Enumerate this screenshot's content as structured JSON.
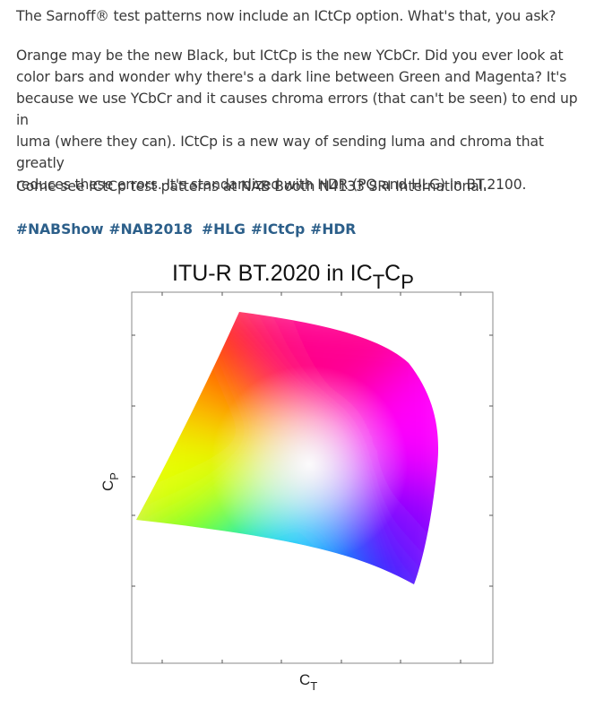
{
  "post": {
    "intro": "The Sarnoff® test patterns now include an ICtCp option. What's that, you ask?",
    "main_lines": [
      "Orange may be the new Black, but ICtCp is the new YCbCr.  Did you ever look at",
      "color bars and wonder why there's a dark line between Green and Magenta? It's",
      "because we use YCbCr and it causes chroma errors (that can't be seen) to end up in",
      "luma (where they can).  ICtCp is a new way of sending luma and chroma that greatly",
      "reduces these errors.  It's standardized with HDR (PQ and HLG) in BT.2100."
    ],
    "booth": "Come see ICtCp test patterns at NAB Booth N4133 SRI International.",
    "hashtags": [
      "#NABShow",
      "#NAB2018",
      "#HLG",
      "#ICtCp",
      "#HDR"
    ]
  },
  "figure": {
    "title_main": "ITU-R BT.2020 in IC",
    "title_sub1": "T",
    "title_mid": "C",
    "title_sub2": "P",
    "xlabel_main": "C",
    "xlabel_sub": "T",
    "ylabel_main": "C",
    "ylabel_sub": "P"
  },
  "chart_data": {
    "type": "area",
    "title": "ITU-R BT.2020 in ICTCP",
    "xlabel": "CT",
    "ylabel": "CP",
    "grid": false,
    "description_colors": {
      "red": "#ff1a00",
      "magenta": "#ff00ff",
      "blue": "#3300ff",
      "green": "#00ff00",
      "yellow": "#ffff00",
      "cyan": "#00ffff",
      "white": "#ffffff"
    }
  }
}
